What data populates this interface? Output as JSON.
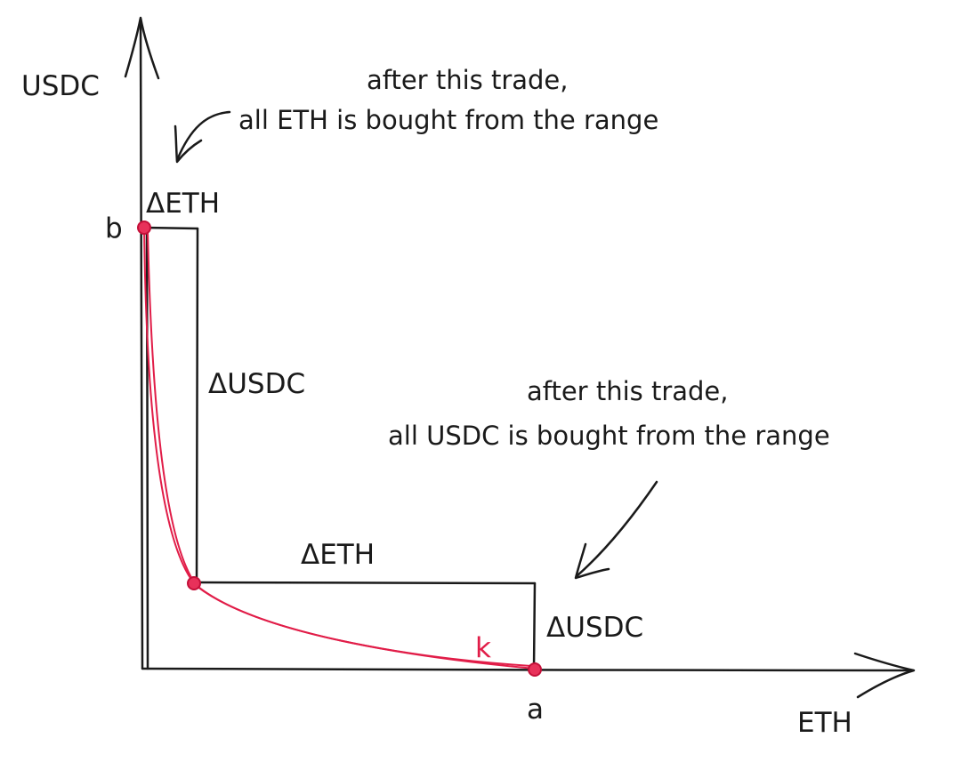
{
  "axes": {
    "y_label": "USDC",
    "x_label": "ETH"
  },
  "points": {
    "b_label": "b",
    "a_label": "a"
  },
  "curve": {
    "label": "k",
    "color": "#e11d48"
  },
  "deltas": {
    "top_eth": "ΔETH",
    "mid_usdc": "ΔUSDC",
    "mid_eth": "ΔETH",
    "bottom_usdc": "ΔUSDC"
  },
  "annotations": {
    "top": {
      "line1": "after this trade,",
      "line2": "all ETH is bought from the range"
    },
    "bottom": {
      "line1": "after this trade,",
      "line2": "all USDC is bought from the range"
    }
  }
}
